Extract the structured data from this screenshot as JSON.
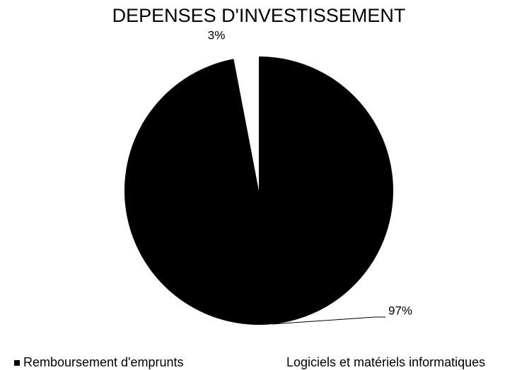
{
  "chart_data": {
    "type": "pie",
    "title": "DEPENSES D'INVESTISSEMENT",
    "categories": [
      "Remboursement d'emprunts",
      "Logiciels et matériels informatiques"
    ],
    "values": [
      97,
      3
    ],
    "value_labels": [
      "97%",
      "3%"
    ],
    "colors": [
      "#000000",
      "#ffffff"
    ],
    "legend": "bottom"
  }
}
